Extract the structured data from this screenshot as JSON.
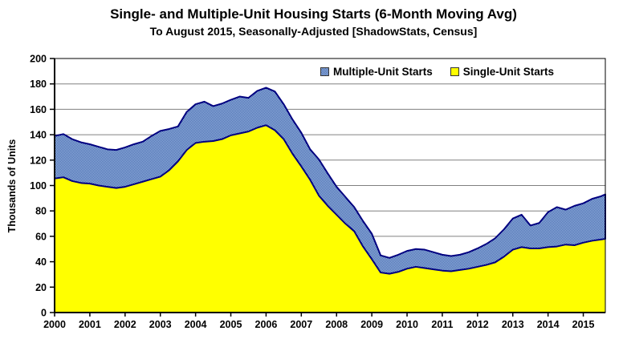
{
  "chart_data": {
    "type": "area",
    "stacked": true,
    "title": "Single- and Multiple-Unit Housing Starts (6-Month Moving Avg)",
    "subtitle": "To August 2015, Seasonally-Adjusted [ShadowStats, Census]",
    "ylabel": "Thousands of Units",
    "ylim": [
      0,
      200
    ],
    "yticks": [
      0,
      20,
      40,
      60,
      80,
      100,
      120,
      140,
      160,
      180,
      200
    ],
    "xlim": [
      2000,
      2015.625
    ],
    "xticks": [
      2000,
      2001,
      2002,
      2003,
      2004,
      2005,
      2006,
      2007,
      2008,
      2009,
      2010,
      2011,
      2012,
      2013,
      2014,
      2015
    ],
    "grid": "horizontal-gray",
    "legend_position": "top-center-inside",
    "x": [
      2000.0,
      2000.25,
      2000.5,
      2000.75,
      2001.0,
      2001.25,
      2001.5,
      2001.75,
      2002.0,
      2002.25,
      2002.5,
      2002.75,
      2003.0,
      2003.25,
      2003.5,
      2003.75,
      2004.0,
      2004.25,
      2004.5,
      2004.75,
      2005.0,
      2005.25,
      2005.5,
      2005.75,
      2006.0,
      2006.25,
      2006.5,
      2006.75,
      2007.0,
      2007.25,
      2007.5,
      2007.75,
      2008.0,
      2008.25,
      2008.5,
      2008.75,
      2009.0,
      2009.25,
      2009.5,
      2009.75,
      2010.0,
      2010.25,
      2010.5,
      2010.75,
      2011.0,
      2011.25,
      2011.5,
      2011.75,
      2012.0,
      2012.25,
      2012.5,
      2012.75,
      2013.0,
      2013.25,
      2013.5,
      2013.75,
      2014.0,
      2014.25,
      2014.5,
      2014.75,
      2015.0,
      2015.25,
      2015.5,
      2015.625
    ],
    "series": [
      {
        "name": "Single-Unit Starts",
        "color": "#FFFF00",
        "values": [
          105.5,
          106.5,
          103.5,
          102,
          101.5,
          100,
          99,
          98,
          99,
          101,
          103,
          105,
          107,
          112,
          119,
          128,
          133.5,
          134.5,
          135,
          136.5,
          139.5,
          141,
          142.5,
          145.5,
          147.5,
          143.5,
          136.5,
          125,
          115,
          104.5,
          92,
          84,
          77,
          70,
          64,
          52,
          42,
          31.5,
          30.5,
          32,
          34.5,
          36,
          35,
          34,
          33,
          32.5,
          33.5,
          34.5,
          36,
          37.5,
          39.5,
          44,
          49.5,
          51.5,
          50.5,
          50.5,
          51.5,
          52,
          53.5,
          53,
          55,
          56.5,
          57.5,
          58
        ]
      },
      {
        "name": "Multiple-Unit Starts",
        "color": "#6E93C9",
        "color_pattern_light": "#9FB9E0",
        "color_pattern_dark": "#4066AE",
        "edge_color": "#000080",
        "values": [
          33.5,
          34,
          33,
          32,
          31,
          30.5,
          29.5,
          30,
          31,
          31.5,
          31.5,
          34,
          36,
          32.5,
          27.5,
          30,
          30.5,
          31.5,
          27.5,
          28,
          28,
          29,
          26.5,
          29,
          29.5,
          30.5,
          27.5,
          27,
          26.5,
          24,
          28.5,
          25.5,
          22,
          21,
          19,
          20,
          20,
          13.5,
          12.5,
          13.5,
          14,
          14,
          14.5,
          13.5,
          12.5,
          12,
          12,
          13,
          14.5,
          16.5,
          19,
          21.5,
          24.5,
          25.5,
          18,
          20,
          27.5,
          31,
          27.5,
          31,
          31,
          33,
          34,
          35
        ]
      }
    ],
    "colors": {
      "background": "#FFFFFF",
      "gridline": "#808080",
      "axis": "#000000",
      "text": "#000000"
    }
  },
  "legend": {
    "multiple_label": "Multiple-Unit Starts",
    "single_label": "Single-Unit Starts"
  }
}
